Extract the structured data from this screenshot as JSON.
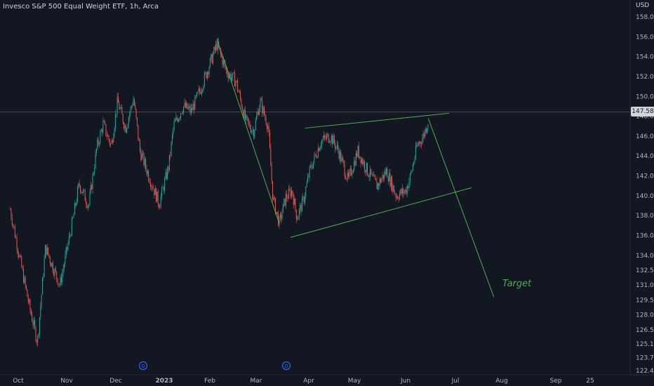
{
  "header": {
    "title": "Invesco S&P 500 Equal Weight ETF, 1h, Arca"
  },
  "axis": {
    "currency": "USD"
  },
  "last_price": "147.58",
  "annotation": {
    "target": "Target"
  },
  "colors": {
    "background": "#131722",
    "up": "#26a69a",
    "down": "#ef5350",
    "drawing": "#4caf50",
    "axis_text": "#b2b5be"
  },
  "chart_data": {
    "type": "candlestick",
    "title": "Invesco S&P 500 Equal Weight ETF, 1h, Arca",
    "ylabel": "USD",
    "ylim": [
      122.2,
      158.8
    ],
    "y_ticks": [
      "158.00",
      "156.00",
      "154.00",
      "152.00",
      "150.00",
      "148.00",
      "146.00",
      "144.00",
      "142.00",
      "140.00",
      "138.00",
      "136.00",
      "134.00",
      "132.50",
      "131.00",
      "129.50",
      "128.00",
      "126.50",
      "125.10",
      "123.70",
      "122.40"
    ],
    "x_ticks": [
      "Oct",
      "Nov",
      "Dec",
      "2023",
      "Feb",
      "Mar",
      "Apr",
      "May",
      "Jun",
      "Jul",
      "Aug",
      "Sep",
      "25"
    ],
    "dividend_markers": [
      "D",
      "D"
    ],
    "price_path": [
      [
        "2022-09-26",
        138.6
      ],
      [
        "2022-10-04",
        132.0
      ],
      [
        "2022-10-08",
        128.8
      ],
      [
        "2022-10-13",
        125.3
      ],
      [
        "2022-10-18",
        134.8
      ],
      [
        "2022-10-27",
        131.0
      ],
      [
        "2022-11-04",
        137.5
      ],
      [
        "2022-11-08",
        141.2
      ],
      [
        "2022-11-14",
        139.0
      ],
      [
        "2022-11-19",
        144.8
      ],
      [
        "2022-11-23",
        147.2
      ],
      [
        "2022-11-28",
        145.0
      ],
      [
        "2022-12-02",
        149.5
      ],
      [
        "2022-12-07",
        146.8
      ],
      [
        "2022-12-12",
        149.8
      ],
      [
        "2022-12-16",
        144.5
      ],
      [
        "2022-12-22",
        141.8
      ],
      [
        "2022-12-28",
        139.2
      ],
      [
        "2023-01-03",
        143.0
      ],
      [
        "2023-01-06",
        147.0
      ],
      [
        "2023-01-12",
        149.0
      ],
      [
        "2023-01-17",
        148.5
      ],
      [
        "2023-01-23",
        150.8
      ],
      [
        "2023-02-02",
        155.2
      ],
      [
        "2023-02-08",
        152.5
      ],
      [
        "2023-02-14",
        151.5
      ],
      [
        "2023-02-20",
        147.5
      ],
      [
        "2023-02-25",
        146.5
      ],
      [
        "2023-03-01",
        149.5
      ],
      [
        "2023-03-06",
        147.0
      ],
      [
        "2023-03-09",
        139.8
      ],
      [
        "2023-03-13",
        137.2
      ],
      [
        "2023-03-17",
        139.8
      ],
      [
        "2023-03-21",
        140.5
      ],
      [
        "2023-03-24",
        137.8
      ],
      [
        "2023-03-28",
        139.5
      ],
      [
        "2023-04-01",
        142.5
      ],
      [
        "2023-04-08",
        145.5
      ],
      [
        "2023-04-14",
        146.0
      ],
      [
        "2023-04-19",
        144.5
      ],
      [
        "2023-04-25",
        141.5
      ],
      [
        "2023-05-01",
        144.5
      ],
      [
        "2023-05-07",
        142.5
      ],
      [
        "2023-05-13",
        141.0
      ],
      [
        "2023-05-19",
        142.5
      ],
      [
        "2023-05-25",
        140.0
      ],
      [
        "2023-05-31",
        140.5
      ],
      [
        "2023-06-03",
        142.0
      ],
      [
        "2023-06-07",
        145.0
      ],
      [
        "2023-06-11",
        146.0
      ],
      [
        "2023-06-14",
        147.58
      ]
    ],
    "last_price": 147.58,
    "drawings": [
      {
        "name": "channel-upper-line",
        "points": [
          [
            "2023-03-29",
            146.8
          ],
          [
            "2023-06-27",
            148.3
          ]
        ]
      },
      {
        "name": "channel-lower-line",
        "points": [
          [
            "2023-03-20",
            135.8
          ],
          [
            "2023-07-11",
            140.8
          ]
        ]
      },
      {
        "name": "decline-line",
        "points": [
          [
            "2023-02-02",
            155.8
          ],
          [
            "2023-03-13",
            137.2
          ]
        ]
      },
      {
        "name": "projection-line",
        "points": [
          [
            "2023-06-14",
            147.8
          ],
          [
            "2023-07-25",
            129.8
          ]
        ]
      }
    ]
  }
}
